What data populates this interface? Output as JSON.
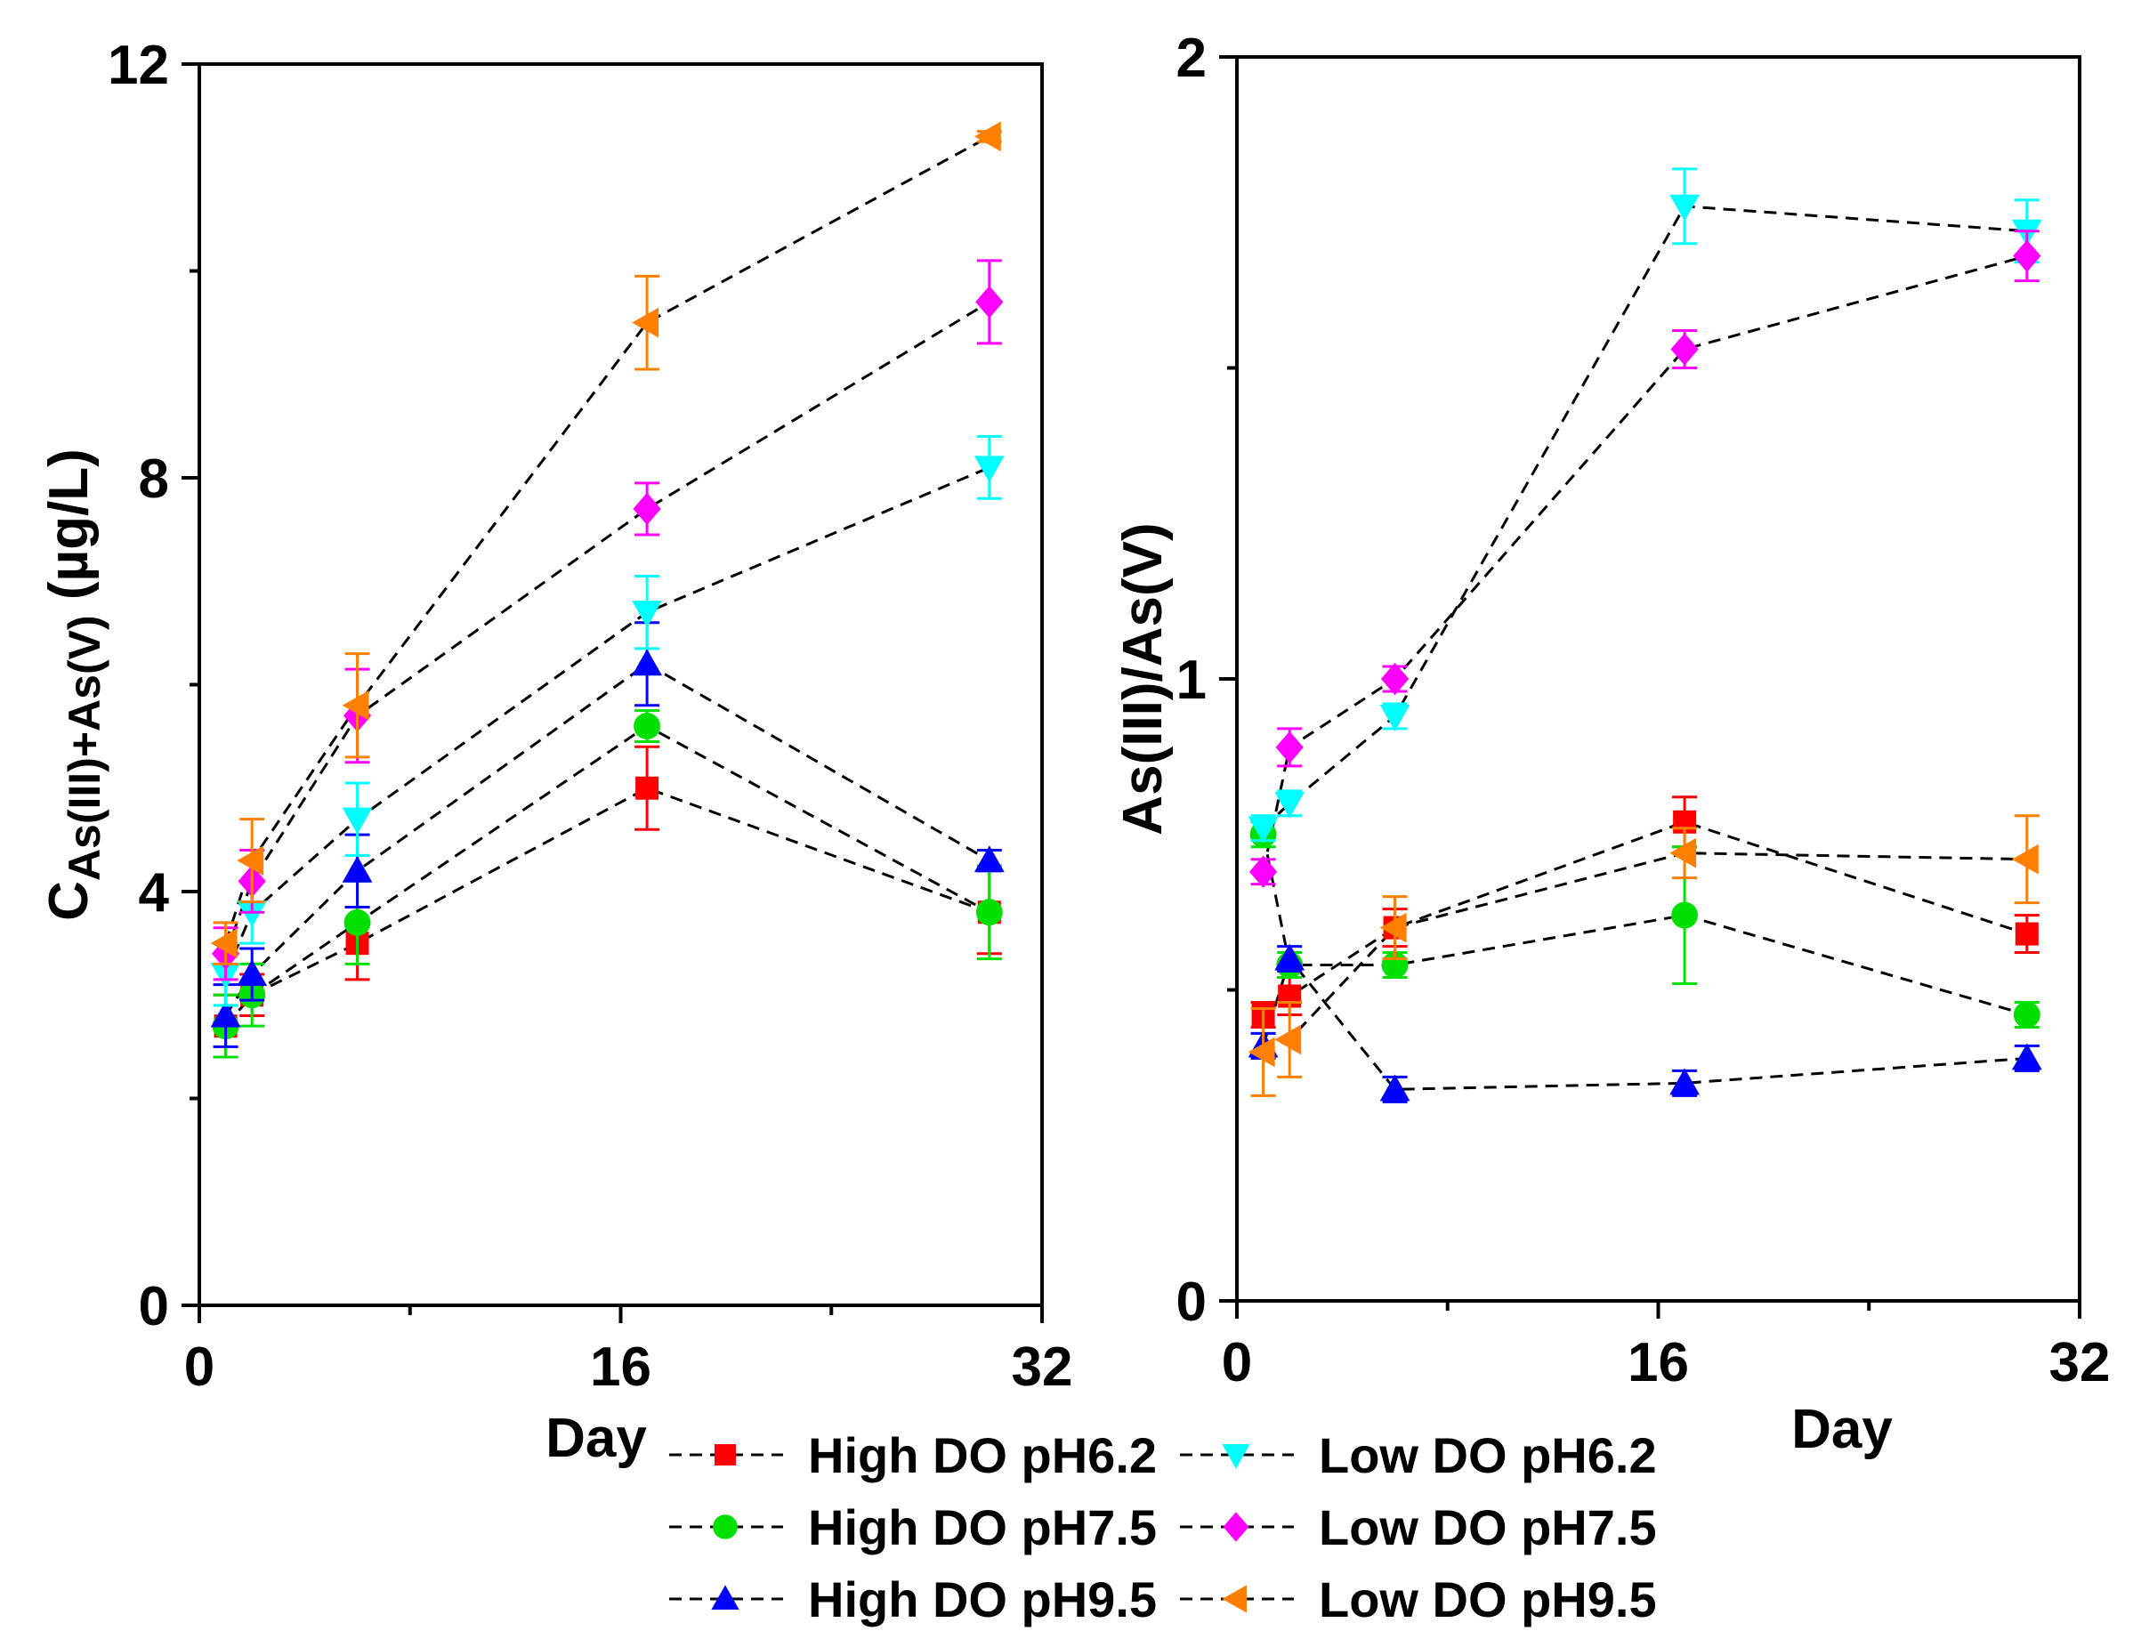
{
  "legend": [
    {
      "label": "High DO pH6.2",
      "series_id": "hdo62"
    },
    {
      "label": "High DO pH7.5",
      "series_id": "hdo75"
    },
    {
      "label": "High DO pH9.5",
      "series_id": "hdo95"
    },
    {
      "label": "Low DO pH6.2",
      "series_id": "ldo62"
    },
    {
      "label": "Low DO pH7.5",
      "series_id": "ldo75"
    },
    {
      "label": "Low DO pH9.5",
      "series_id": "ldo95"
    }
  ],
  "series_styles": [
    {
      "id": "hdo62",
      "color": "#ff0000",
      "marker": "square"
    },
    {
      "id": "hdo75",
      "color": "#00e000",
      "marker": "circle"
    },
    {
      "id": "hdo95",
      "color": "#0000ff",
      "marker": "triangle-up"
    },
    {
      "id": "ldo62",
      "color": "#00ffff",
      "marker": "triangle-down"
    },
    {
      "id": "ldo75",
      "color": "#ff00ff",
      "marker": "diamond"
    },
    {
      "id": "ldo95",
      "color": "#ff8000",
      "marker": "triangle-left"
    }
  ],
  "chart_data": [
    {
      "type": "line",
      "ylabel_main": "C",
      "ylabel_sub": "As(III)+As(V)",
      "ylabel_unit": " (µg/L)",
      "xlabel": "Day",
      "xlim": [
        0,
        32
      ],
      "ylim": [
        0,
        12
      ],
      "xticks": [
        0,
        16,
        32
      ],
      "xtick_labels": [
        "0",
        "16",
        "32"
      ],
      "yticks": [
        0,
        4,
        8,
        12
      ],
      "ytick_labels": [
        "0",
        "4",
        "8",
        "12"
      ],
      "line_style": "dashed",
      "x": [
        1,
        2,
        6,
        17,
        30
      ],
      "series": [
        {
          "name": "High DO pH6.2",
          "values": [
            2.7,
            3.0,
            3.5,
            5.0,
            3.8
          ],
          "errors": [
            0.3,
            0.2,
            0.35,
            0.4,
            0.4
          ]
        },
        {
          "name": "High DO pH7.5",
          "values": [
            2.7,
            3.0,
            3.7,
            5.6,
            3.8
          ],
          "errors": [
            0.3,
            0.3,
            0.4,
            0.15,
            0.45
          ]
        },
        {
          "name": "High DO pH9.5",
          "values": [
            2.8,
            3.2,
            4.2,
            6.2,
            4.3
          ],
          "errors": [
            0.3,
            0.25,
            0.35,
            0.4,
            0.1
          ]
        },
        {
          "name": "Low DO pH6.2",
          "values": [
            3.2,
            3.8,
            4.7,
            6.7,
            8.1
          ],
          "errors": [
            0.3,
            0.3,
            0.35,
            0.35,
            0.3
          ]
        },
        {
          "name": "Low DO pH7.5",
          "values": [
            3.4,
            4.1,
            5.7,
            7.7,
            9.7
          ],
          "errors": [
            0.25,
            0.3,
            0.45,
            0.25,
            0.4
          ]
        },
        {
          "name": "Low DO pH9.5",
          "values": [
            3.5,
            4.3,
            5.8,
            9.5,
            11.3
          ],
          "errors": [
            0.2,
            0.4,
            0.5,
            0.45,
            0.05
          ]
        }
      ]
    },
    {
      "type": "line",
      "ylabel": "As(III)/As(V)",
      "xlabel": "Day",
      "xlim": [
        0,
        32
      ],
      "ylim": [
        0,
        2
      ],
      "xticks": [
        0,
        16,
        32
      ],
      "xtick_labels": [
        "0",
        "16",
        "32"
      ],
      "yticks": [
        0,
        1,
        2
      ],
      "ytick_labels": [
        "0",
        "1",
        "2"
      ],
      "line_style": "dashed",
      "x": [
        1,
        2,
        6,
        17,
        30
      ],
      "series": [
        {
          "name": "High DO pH6.2",
          "values": [
            0.46,
            0.49,
            0.6,
            0.77,
            0.59
          ],
          "errors": [
            0.02,
            0.03,
            0.03,
            0.04,
            0.03
          ]
        },
        {
          "name": "High DO pH7.5",
          "values": [
            0.75,
            0.54,
            0.54,
            0.62,
            0.46
          ],
          "errors": [
            0.02,
            0.02,
            0.02,
            0.11,
            0.02
          ]
        },
        {
          "name": "High DO pH9.5",
          "values": [
            0.41,
            0.55,
            0.34,
            0.35,
            0.39
          ],
          "errors": [
            0.02,
            0.02,
            0.02,
            0.02,
            0.02
          ]
        },
        {
          "name": "Low DO pH6.2",
          "values": [
            0.76,
            0.8,
            0.94,
            1.76,
            1.72
          ],
          "errors": [
            0.02,
            0.02,
            0.02,
            0.06,
            0.05
          ]
        },
        {
          "name": "Low DO pH7.5",
          "values": [
            0.69,
            0.89,
            1.0,
            1.53,
            1.68
          ],
          "errors": [
            0.02,
            0.03,
            0.02,
            0.03,
            0.04
          ]
        },
        {
          "name": "Low DO pH9.5",
          "values": [
            0.4,
            0.42,
            0.6,
            0.72,
            0.71
          ],
          "errors": [
            0.07,
            0.06,
            0.05,
            0.04,
            0.07
          ]
        }
      ]
    }
  ]
}
